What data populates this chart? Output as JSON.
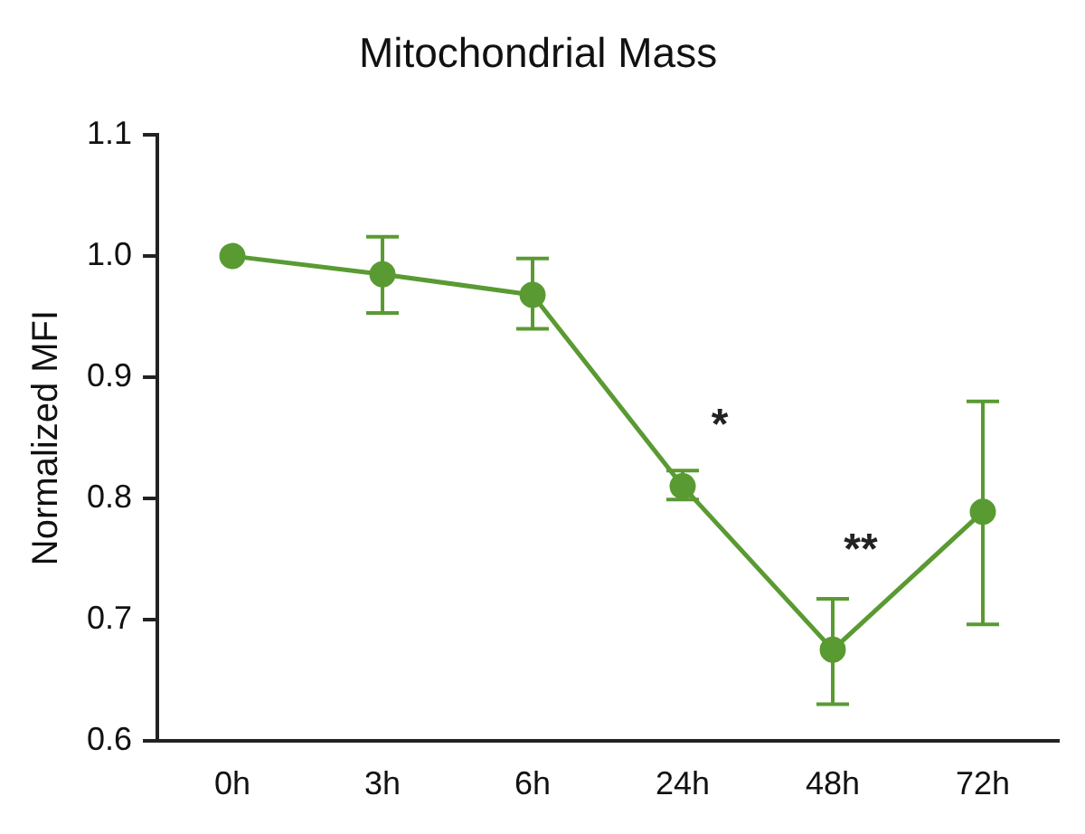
{
  "chart_data": {
    "type": "line",
    "title": "Mitochondrial Mass",
    "ylabel": "Normalized MFI",
    "categories": [
      "0h",
      "3h",
      "6h",
      "24h",
      "48h",
      "72h"
    ],
    "series": [
      {
        "color": "#5a9a32",
        "values": [
          1.0,
          0.985,
          0.968,
          0.81,
          0.675,
          0.789
        ],
        "errors": [
          null,
          [
            0.953,
            1.016
          ],
          [
            0.94,
            0.998
          ],
          [
            0.799,
            0.823
          ],
          [
            0.63,
            0.717
          ],
          [
            0.696,
            0.88
          ]
        ]
      }
    ],
    "ylim": [
      0.6,
      1.1
    ],
    "annotations": [
      "*",
      "**"
    ],
    "yticks": [
      0.6,
      0.7,
      0.8,
      0.9,
      {
        "value": 1.0,
        "label": "1.0"
      },
      1.1
    ],
    "grid": false,
    "legend": false,
    "marker": "circle",
    "line_style": "solid"
  }
}
